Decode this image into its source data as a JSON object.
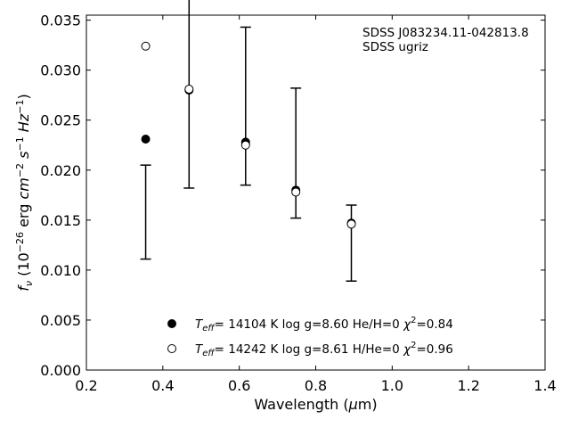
{
  "chart_data": {
    "type": "scatter",
    "xlabel": "Wavelength (μm)",
    "ylabel": "f_ν (10^-26 erg cm^-2 s^-1 Hz^-1)",
    "xlim": [
      0.2,
      1.4
    ],
    "ylim": [
      0.0,
      0.0355
    ],
    "x_ticks": [
      "0.2",
      "0.4",
      "0.6",
      "0.8",
      "1.0",
      "1.2",
      "1.4"
    ],
    "y_ticks": [
      "0.000",
      "0.005",
      "0.010",
      "0.015",
      "0.020",
      "0.025",
      "0.030",
      "0.035"
    ],
    "grid": false,
    "annotations": [
      "SDSS J083234.11-042813.8",
      "SDSS ugriz"
    ],
    "observed": {
      "x": [
        0.3551,
        0.4686,
        0.6166,
        0.748,
        0.8932
      ],
      "y": [
        0.0158,
        0.028,
        0.0264,
        0.0217,
        0.0127
      ],
      "yerr": [
        0.0047,
        0.0098,
        0.0079,
        0.0065,
        0.0038
      ]
    },
    "series": [
      {
        "name": "T_eff= 14104 K  log g=8.60  He/H=0  χ²=0.84",
        "marker": "filled",
        "x": [
          0.3551,
          0.4686,
          0.6166,
          0.748,
          0.8932
        ],
        "y": [
          0.0231,
          0.028,
          0.0228,
          0.018,
          0.0147
        ]
      },
      {
        "name": "T_eff= 14242 K  log g=8.61  H/He=0  χ²=0.96",
        "marker": "open",
        "x": [
          0.3551,
          0.4686,
          0.6166,
          0.748,
          0.8932
        ],
        "y": [
          0.0324,
          0.0281,
          0.0225,
          0.0178,
          0.0146
        ]
      }
    ],
    "legend_position": "bottom-center"
  }
}
